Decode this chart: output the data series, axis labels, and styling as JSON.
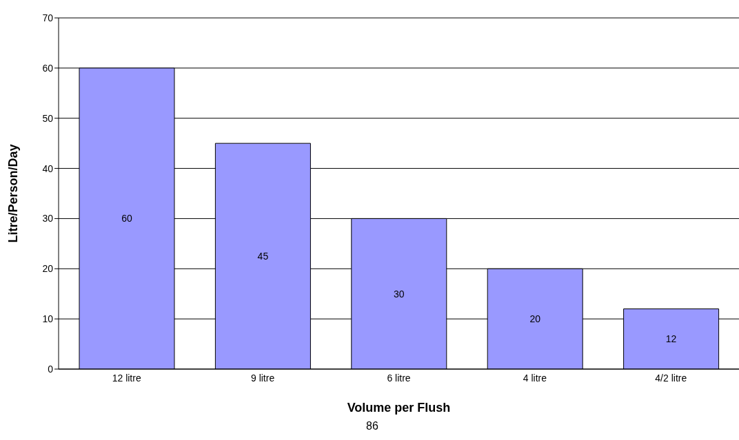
{
  "chart_data": {
    "type": "bar",
    "xlabel": "Volume per Flush",
    "ylabel": "Litre/Person/Day",
    "categories": [
      "12 litre",
      "9 litre",
      "6 litre",
      "4 litre",
      "4/2 litre"
    ],
    "values": [
      60,
      45,
      30,
      20,
      12
    ],
    "color": "#9999ff",
    "ylim": [
      0,
      70
    ],
    "yticks": [
      0,
      10,
      20,
      30,
      40,
      50,
      60,
      70
    ],
    "grid": "y",
    "data_labels": true,
    "annotations": [
      "86"
    ]
  }
}
